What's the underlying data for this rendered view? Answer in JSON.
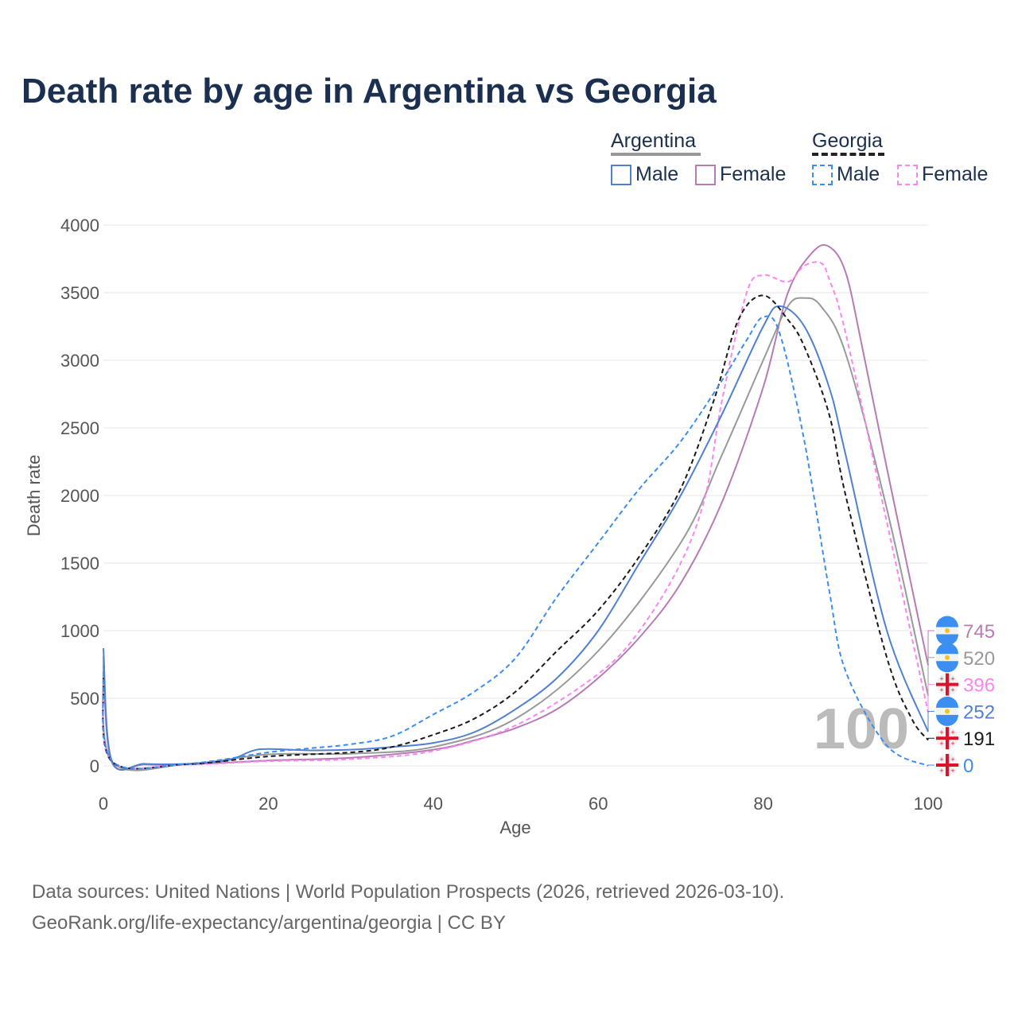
{
  "title": "Death rate by age in Argentina vs Georgia",
  "legend": {
    "groups": [
      {
        "name": "Argentina",
        "items": [
          "Male",
          "Female"
        ]
      },
      {
        "name": "Georgia",
        "items": [
          "Male",
          "Female"
        ]
      }
    ]
  },
  "watermark": "100",
  "source_line1": "Data sources: United Nations | World Population Prospects (2026, retrieved 2026-03-10).",
  "source_line2": "GeoRank.org/life-expectancy/argentina/georgia | CC BY",
  "chart_data": {
    "type": "line",
    "title": "Death rate by age in Argentina vs Georgia",
    "xlabel": "Age",
    "ylabel": "Death rate",
    "xlim": [
      0,
      100
    ],
    "ylim": [
      0,
      4000
    ],
    "xticks": [
      0,
      20,
      40,
      60,
      80,
      100
    ],
    "yticks": [
      0,
      500,
      1000,
      1500,
      2000,
      2500,
      3000,
      3500,
      4000
    ],
    "grid": true,
    "legend_position": "top-right",
    "series": [
      {
        "name": "Argentina Female",
        "country": "Argentina",
        "color": "#b77bb4",
        "dash": false,
        "end_label": "745",
        "flag": "argentina",
        "points": [
          [
            0,
            750
          ],
          [
            1,
            30
          ],
          [
            5,
            10
          ],
          [
            10,
            10
          ],
          [
            20,
            40
          ],
          [
            30,
            60
          ],
          [
            40,
            120
          ],
          [
            45,
            190
          ],
          [
            50,
            280
          ],
          [
            55,
            420
          ],
          [
            60,
            650
          ],
          [
            65,
            950
          ],
          [
            70,
            1350
          ],
          [
            75,
            1950
          ],
          [
            80,
            2800
          ],
          [
            83,
            3500
          ],
          [
            86,
            3800
          ],
          [
            88,
            3840
          ],
          [
            90,
            3650
          ],
          [
            92,
            3100
          ],
          [
            95,
            2200
          ],
          [
            100,
            745
          ]
        ]
      },
      {
        "name": "Argentina",
        "country": "Argentina",
        "color": "#999999",
        "dash": false,
        "end_label": "520",
        "flag": "argentina",
        "points": [
          [
            0,
            810
          ],
          [
            1,
            35
          ],
          [
            10,
            12
          ],
          [
            20,
            85
          ],
          [
            30,
            90
          ],
          [
            40,
            140
          ],
          [
            50,
            350
          ],
          [
            60,
            850
          ],
          [
            70,
            1650
          ],
          [
            75,
            2300
          ],
          [
            80,
            3000
          ],
          [
            83,
            3400
          ],
          [
            85,
            3460
          ],
          [
            87,
            3400
          ],
          [
            90,
            3050
          ],
          [
            95,
            1900
          ],
          [
            100,
            520
          ]
        ]
      },
      {
        "name": "Georgia Female",
        "country": "Georgia",
        "color": "#f985f4",
        "dash": true,
        "end_label": "396",
        "flag": "georgia",
        "points": [
          [
            0,
            600
          ],
          [
            1,
            30
          ],
          [
            10,
            10
          ],
          [
            20,
            35
          ],
          [
            30,
            50
          ],
          [
            40,
            110
          ],
          [
            50,
            300
          ],
          [
            60,
            680
          ],
          [
            65,
            1000
          ],
          [
            70,
            1500
          ],
          [
            73,
            2000
          ],
          [
            75,
            2700
          ],
          [
            78,
            3500
          ],
          [
            80,
            3630
          ],
          [
            83,
            3580
          ],
          [
            85,
            3700
          ],
          [
            87,
            3720
          ],
          [
            88,
            3600
          ],
          [
            90,
            3200
          ],
          [
            95,
            1800
          ],
          [
            100,
            396
          ]
        ]
      },
      {
        "name": "Argentina Male",
        "country": "Argentina",
        "color": "#5080d0",
        "dash": false,
        "end_label": "252",
        "flag": "argentina",
        "points": [
          [
            0,
            870
          ],
          [
            1,
            40
          ],
          [
            5,
            15
          ],
          [
            10,
            15
          ],
          [
            15,
            40
          ],
          [
            18,
            110
          ],
          [
            20,
            125
          ],
          [
            25,
            115
          ],
          [
            30,
            120
          ],
          [
            35,
            140
          ],
          [
            40,
            170
          ],
          [
            45,
            250
          ],
          [
            50,
            420
          ],
          [
            55,
            650
          ],
          [
            60,
            1000
          ],
          [
            65,
            1500
          ],
          [
            70,
            2000
          ],
          [
            75,
            2600
          ],
          [
            80,
            3250
          ],
          [
            82,
            3400
          ],
          [
            85,
            3250
          ],
          [
            88,
            2800
          ],
          [
            90,
            2300
          ],
          [
            95,
            1000
          ],
          [
            100,
            252
          ]
        ]
      },
      {
        "name": "Georgia",
        "country": "Georgia",
        "color": "#1a1a1a",
        "dash": true,
        "end_label": "191",
        "flag": "georgia",
        "points": [
          [
            0,
            650
          ],
          [
            1,
            35
          ],
          [
            10,
            12
          ],
          [
            20,
            70
          ],
          [
            30,
            100
          ],
          [
            35,
            140
          ],
          [
            40,
            230
          ],
          [
            45,
            350
          ],
          [
            50,
            550
          ],
          [
            55,
            850
          ],
          [
            60,
            1150
          ],
          [
            65,
            1550
          ],
          [
            70,
            2050
          ],
          [
            74,
            2700
          ],
          [
            77,
            3300
          ],
          [
            80,
            3480
          ],
          [
            83,
            3300
          ],
          [
            85,
            3100
          ],
          [
            88,
            2600
          ],
          [
            90,
            2000
          ],
          [
            95,
            800
          ],
          [
            98,
            350
          ],
          [
            100,
            191
          ]
        ]
      },
      {
        "name": "Georgia Male",
        "country": "Georgia",
        "color": "#3b8df0",
        "dash": true,
        "end_label": "0",
        "flag": "georgia",
        "points": [
          [
            0,
            700
          ],
          [
            1,
            40
          ],
          [
            10,
            15
          ],
          [
            20,
            100
          ],
          [
            25,
            130
          ],
          [
            30,
            160
          ],
          [
            35,
            220
          ],
          [
            40,
            380
          ],
          [
            45,
            550
          ],
          [
            50,
            800
          ],
          [
            55,
            1250
          ],
          [
            60,
            1650
          ],
          [
            65,
            2050
          ],
          [
            70,
            2400
          ],
          [
            75,
            2850
          ],
          [
            78,
            3150
          ],
          [
            80,
            3320
          ],
          [
            82,
            3200
          ],
          [
            85,
            2400
          ],
          [
            88,
            1300
          ],
          [
            90,
            700
          ],
          [
            95,
            150
          ],
          [
            100,
            0
          ]
        ]
      }
    ]
  }
}
